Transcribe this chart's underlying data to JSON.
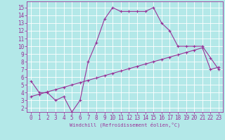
{
  "xlabel": "Windchill (Refroidissement éolien,°C)",
  "x_ticks": [
    0,
    1,
    2,
    3,
    4,
    5,
    6,
    7,
    8,
    9,
    10,
    11,
    12,
    13,
    14,
    15,
    16,
    17,
    18,
    19,
    20,
    21,
    22,
    23
  ],
  "y_ticks": [
    2,
    3,
    4,
    5,
    6,
    7,
    8,
    9,
    10,
    11,
    12,
    13,
    14,
    15
  ],
  "ylim": [
    1.5,
    15.8
  ],
  "xlim": [
    -0.5,
    23.5
  ],
  "line1_x": [
    0,
    1,
    2,
    3,
    4,
    5,
    6,
    7,
    8,
    9,
    10,
    11,
    12,
    13,
    14,
    15,
    16,
    17,
    18,
    19,
    20,
    21,
    22,
    23
  ],
  "line1_y": [
    5.5,
    4.0,
    4.0,
    3.0,
    3.5,
    1.5,
    3.0,
    8.0,
    10.5,
    13.5,
    15.0,
    14.5,
    14.5,
    14.5,
    14.5,
    15.0,
    13.0,
    12.0,
    10.0,
    10.0,
    10.0,
    10.0,
    8.5,
    7.0
  ],
  "line2_x": [
    0,
    1,
    2,
    3,
    4,
    5,
    6,
    7,
    8,
    9,
    10,
    11,
    12,
    13,
    14,
    15,
    16,
    17,
    18,
    19,
    20,
    21,
    22,
    23
  ],
  "line2_y": [
    3.5,
    3.8,
    4.1,
    4.4,
    4.7,
    5.0,
    5.3,
    5.6,
    5.9,
    6.2,
    6.5,
    6.8,
    7.1,
    7.4,
    7.7,
    8.0,
    8.3,
    8.6,
    8.9,
    9.2,
    9.5,
    9.8,
    7.0,
    7.3
  ],
  "line_color": "#993399",
  "bg_color": "#b3e8e8",
  "grid_color": "#ffffff",
  "marker": "+",
  "linewidth": 0.8,
  "markersize": 3,
  "tick_fontsize": 5.5
}
